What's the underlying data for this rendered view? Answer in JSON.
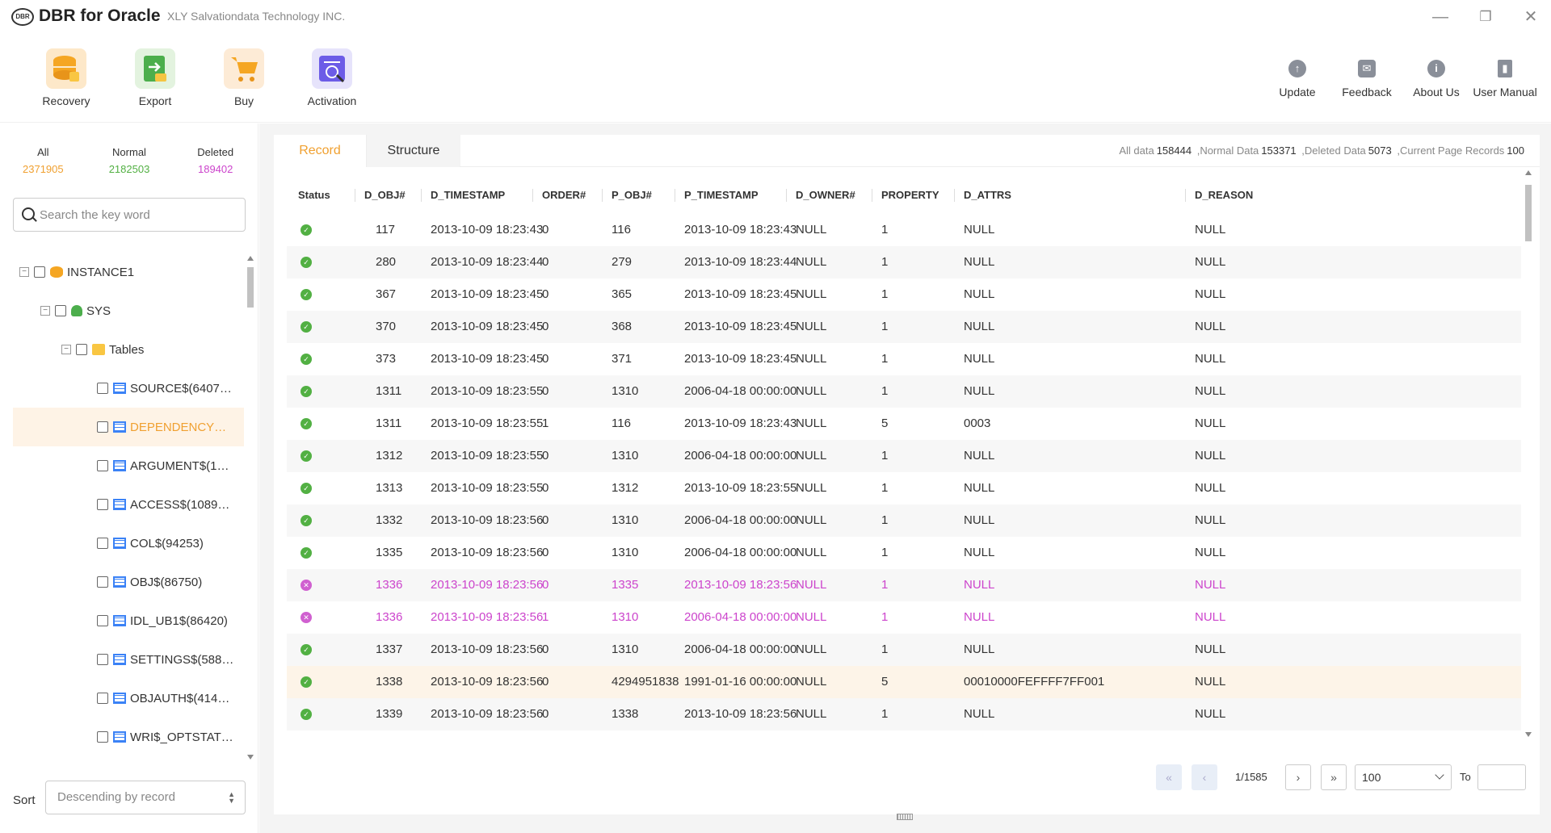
{
  "app": {
    "title": "DBR for Oracle",
    "company": "XLY Salvationdata Technology INC.",
    "logo_text": "DBR"
  },
  "window": {
    "minimize": "—",
    "restore": "❐",
    "close": "✕"
  },
  "toolbar": {
    "recovery": "Recovery",
    "export": "Export",
    "buy": "Buy",
    "activation": "Activation",
    "update": "Update",
    "feedback": "Feedback",
    "about": "About Us",
    "manual": "User Manual"
  },
  "sidebar": {
    "all_label": "All",
    "all_value": "2371905",
    "normal_label": "Normal",
    "normal_value": "2182503",
    "deleted_label": "Deleted",
    "deleted_value": "189402",
    "search_placeholder": "Search the key word",
    "sort_label": "Sort",
    "sort_value": "Descending by record",
    "tree": {
      "instance": "INSTANCE1",
      "schema": "SYS",
      "folder": "Tables",
      "tables": [
        "SOURCE$(6407…",
        "DEPENDENCY…",
        "ARGUMENT$(1…",
        "ACCESS$(1089…",
        "COL$(94253)",
        "OBJ$(86750)",
        "IDL_UB1$(86420)",
        "SETTINGS$(588…",
        "OBJAUTH$(414…",
        "WRI$_OPTSTAT…"
      ]
    }
  },
  "tabs": {
    "record": "Record",
    "structure": "Structure"
  },
  "stats": {
    "all_label": "All data",
    "all_value": "158444",
    "normal_label": ",Normal Data",
    "normal_value": "153371",
    "deleted_label": ",Deleted Data",
    "deleted_value": "5073",
    "page_label": ",Current Page Records",
    "page_value": "100"
  },
  "table": {
    "columns": [
      "Status",
      "D_OBJ#",
      "D_TIMESTAMP",
      "ORDER#",
      "P_OBJ#",
      "P_TIMESTAMP",
      "D_OWNER#",
      "PROPERTY",
      "D_ATTRS",
      "D_REASON"
    ],
    "rows": [
      {
        "status": "ok",
        "cells": [
          "117",
          "2013-10-09 18:23:43",
          "0",
          "116",
          "2013-10-09 18:23:43",
          "NULL",
          "1",
          "NULL",
          "NULL"
        ]
      },
      {
        "status": "ok",
        "cells": [
          "280",
          "2013-10-09 18:23:44",
          "0",
          "279",
          "2013-10-09 18:23:44",
          "NULL",
          "1",
          "NULL",
          "NULL"
        ]
      },
      {
        "status": "ok",
        "cells": [
          "367",
          "2013-10-09 18:23:45",
          "0",
          "365",
          "2013-10-09 18:23:45",
          "NULL",
          "1",
          "NULL",
          "NULL"
        ]
      },
      {
        "status": "ok",
        "cells": [
          "370",
          "2013-10-09 18:23:45",
          "0",
          "368",
          "2013-10-09 18:23:45",
          "NULL",
          "1",
          "NULL",
          "NULL"
        ]
      },
      {
        "status": "ok",
        "cells": [
          "373",
          "2013-10-09 18:23:45",
          "0",
          "371",
          "2013-10-09 18:23:45",
          "NULL",
          "1",
          "NULL",
          "NULL"
        ]
      },
      {
        "status": "ok",
        "cells": [
          "1311",
          "2013-10-09 18:23:55",
          "0",
          "1310",
          "2006-04-18 00:00:00",
          "NULL",
          "1",
          "NULL",
          "NULL"
        ]
      },
      {
        "status": "ok",
        "cells": [
          "1311",
          "2013-10-09 18:23:55",
          "1",
          "116",
          "2013-10-09 18:23:43",
          "NULL",
          "5",
          "0003",
          "NULL"
        ]
      },
      {
        "status": "ok",
        "cells": [
          "1312",
          "2013-10-09 18:23:55",
          "0",
          "1310",
          "2006-04-18 00:00:00",
          "NULL",
          "1",
          "NULL",
          "NULL"
        ]
      },
      {
        "status": "ok",
        "cells": [
          "1313",
          "2013-10-09 18:23:55",
          "0",
          "1312",
          "2013-10-09 18:23:55",
          "NULL",
          "1",
          "NULL",
          "NULL"
        ]
      },
      {
        "status": "ok",
        "cells": [
          "1332",
          "2013-10-09 18:23:56",
          "0",
          "1310",
          "2006-04-18 00:00:00",
          "NULL",
          "1",
          "NULL",
          "NULL"
        ]
      },
      {
        "status": "ok",
        "cells": [
          "1335",
          "2013-10-09 18:23:56",
          "0",
          "1310",
          "2006-04-18 00:00:00",
          "NULL",
          "1",
          "NULL",
          "NULL"
        ]
      },
      {
        "status": "del",
        "cells": [
          "1336",
          "2013-10-09 18:23:56",
          "0",
          "1335",
          "2013-10-09 18:23:56",
          "NULL",
          "1",
          "NULL",
          "NULL"
        ]
      },
      {
        "status": "del",
        "cells": [
          "1336",
          "2013-10-09 18:23:56",
          "1",
          "1310",
          "2006-04-18 00:00:00",
          "NULL",
          "1",
          "NULL",
          "NULL"
        ]
      },
      {
        "status": "ok",
        "cells": [
          "1337",
          "2013-10-09 18:23:56",
          "0",
          "1310",
          "2006-04-18 00:00:00",
          "NULL",
          "1",
          "NULL",
          "NULL"
        ]
      },
      {
        "status": "ok",
        "cells": [
          "1338",
          "2013-10-09 18:23:56",
          "0",
          "4294951838",
          "1991-01-16 00:00:00",
          "NULL",
          "5",
          "00010000FEFFFF7FF001",
          "NULL"
        ]
      },
      {
        "status": "ok",
        "cells": [
          "1339",
          "2013-10-09 18:23:56",
          "0",
          "1338",
          "2013-10-09 18:23:56",
          "NULL",
          "1",
          "NULL",
          "NULL"
        ]
      }
    ]
  },
  "pager": {
    "first": "«",
    "prev": "‹",
    "info": "1/1585",
    "next": "›",
    "last": "»",
    "page_size": "100",
    "goto_label": "To"
  },
  "colors": {
    "accent": "#f0a030",
    "normal": "#52b043",
    "deleted": "#cc44cc"
  }
}
